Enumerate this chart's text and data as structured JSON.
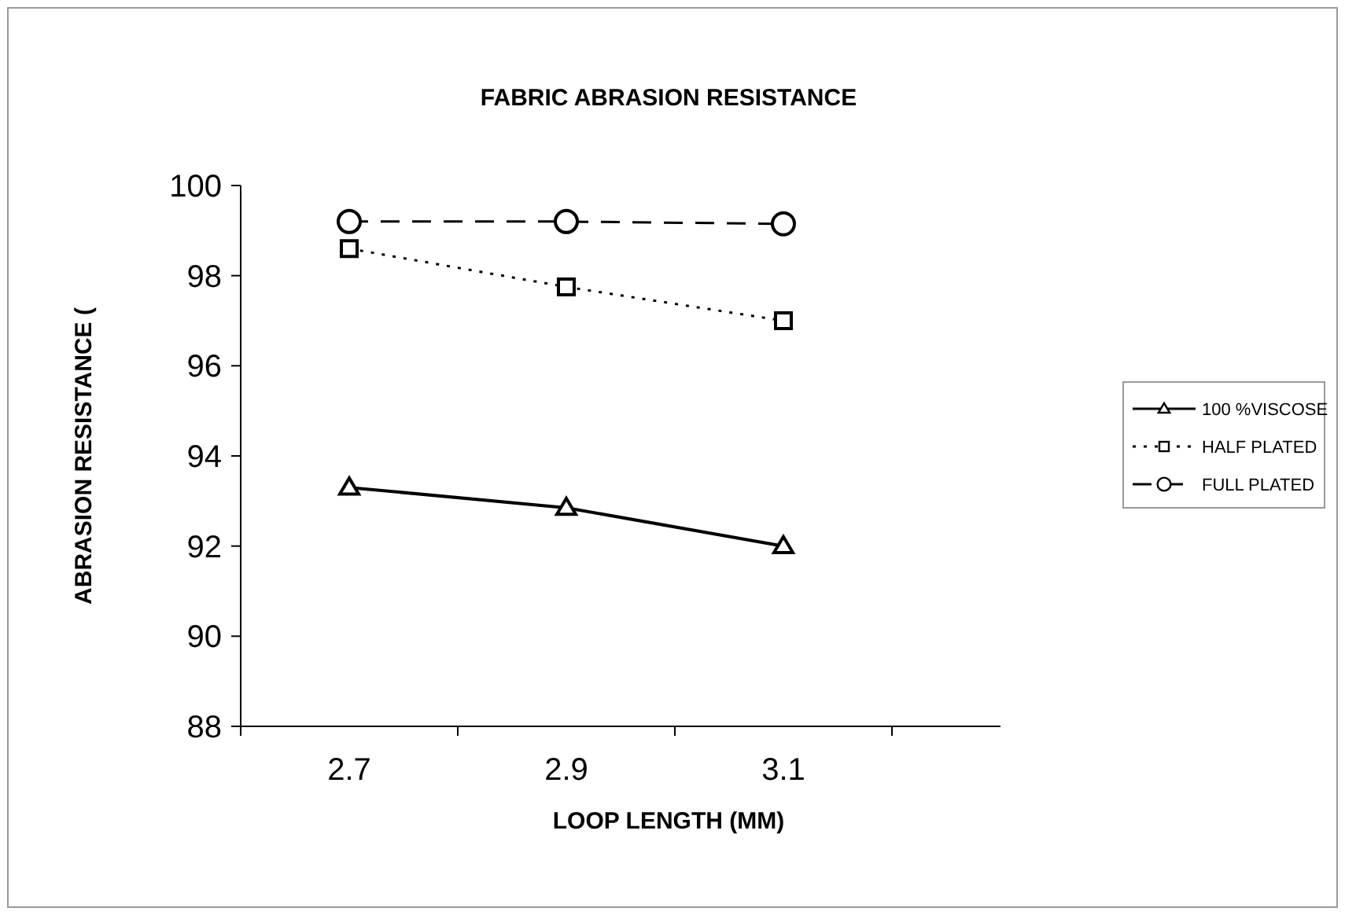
{
  "chart_data": {
    "type": "line",
    "title": "FABRIC ABRASION RESISTANCE",
    "xlabel": "LOOP LENGTH (MM)",
    "ylabel": "ABRASION RESISTANCE (",
    "categories": [
      "2.7",
      "2.9",
      "3.1"
    ],
    "series": [
      {
        "name": "100 %VISCOSE",
        "color": "#000000",
        "values": [
          93.3,
          92.85,
          92.0
        ],
        "marker": "triangle",
        "line_style": "solid"
      },
      {
        "name": "HALF PLATED",
        "color": "#000000",
        "values": [
          98.6,
          97.75,
          97.0
        ],
        "marker": "square",
        "line_style": "dotted"
      },
      {
        "name": "FULL PLATED",
        "color": "#000000",
        "values": [
          99.2,
          99.2,
          99.15
        ],
        "marker": "circle",
        "line_style": "dashed"
      }
    ],
    "ylim": [
      88,
      100
    ],
    "yticks": [
      88,
      90,
      92,
      94,
      96,
      98,
      100
    ],
    "grid": false,
    "legend": "right"
  }
}
